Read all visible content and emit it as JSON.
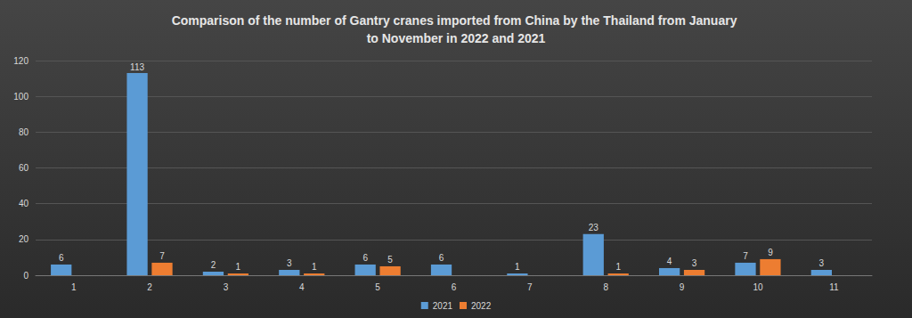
{
  "chart_data": {
    "type": "bar",
    "title": "Comparison of the number of Gantry cranes imported from China by the Thailand from January to November in 2022 and 2021",
    "categories": [
      "1",
      "2",
      "3",
      "4",
      "5",
      "6",
      "7",
      "8",
      "9",
      "10",
      "11"
    ],
    "series": [
      {
        "name": "2021",
        "color": "#5b9bd5",
        "values": [
          6,
          113,
          2,
          3,
          6,
          6,
          1,
          23,
          4,
          7,
          3
        ]
      },
      {
        "name": "2022",
        "color": "#ed7d31",
        "values": [
          null,
          7,
          1,
          1,
          5,
          null,
          null,
          1,
          3,
          9,
          null
        ]
      }
    ],
    "ylim": [
      0,
      120
    ],
    "yticks": [
      0,
      20,
      40,
      60,
      80,
      100,
      120
    ],
    "grid": true,
    "legend": "bottom",
    "data_labels": true
  }
}
